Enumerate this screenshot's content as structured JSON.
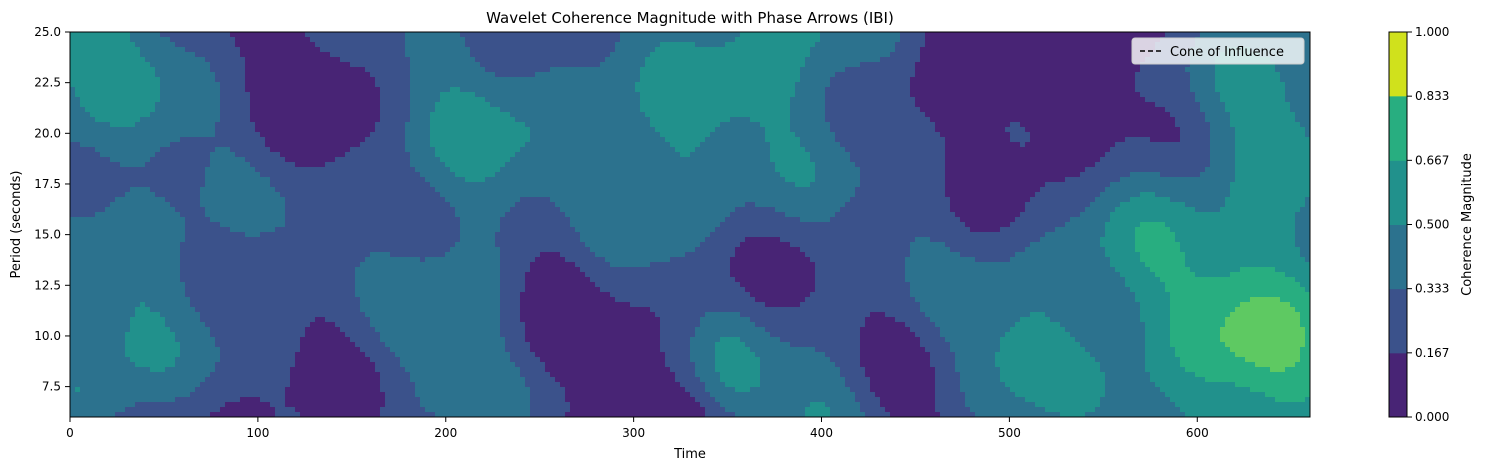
{
  "chart_data": {
    "type": "heatmap",
    "title": "Wavelet Coherence Magnitude with Phase Arrows (IBI)",
    "xlabel": "Time",
    "ylabel": "Period (seconds)",
    "xlim": [
      0,
      660
    ],
    "ylim": [
      6,
      25
    ],
    "xticks": [
      0,
      100,
      200,
      300,
      400,
      500,
      600
    ],
    "yticks": [
      7.5,
      10.0,
      12.5,
      15.0,
      17.5,
      20.0,
      22.5,
      25.0
    ],
    "ytick_labels": [
      "7.5",
      "10.0",
      "12.5",
      "15.0",
      "17.5",
      "20.0",
      "22.5",
      "25.0"
    ],
    "legend": {
      "label": "Cone of Influence",
      "placement": "top-right",
      "line_style": "dashed",
      "color": "#000000"
    },
    "colorbar": {
      "label": "Coherence Magnitude",
      "levels": [
        0.0,
        0.167,
        0.333,
        0.5,
        0.667,
        0.833,
        1.0
      ],
      "tick_labels": [
        "0.000",
        "0.167",
        "0.333",
        "0.500",
        "0.667",
        "0.833",
        "1.000"
      ],
      "colors": [
        "#482475",
        "#3b528b",
        "#2c728e",
        "#21918c",
        "#28ae80",
        "#5ec962",
        "#d0e11c"
      ]
    },
    "grid": false,
    "blobs": [
      {
        "x": 8,
        "y": 24.5,
        "r": 65,
        "v": 0.46
      },
      {
        "x": 12,
        "y": 8.5,
        "r": 45,
        "v": 0.4
      },
      {
        "x": 70,
        "y": 14,
        "r": 55,
        "v": 0.22
      },
      {
        "x": 130,
        "y": 14,
        "r": 20,
        "v": 0.12
      },
      {
        "x": 215,
        "y": 20,
        "r": 70,
        "v": 0.4
      },
      {
        "x": 200,
        "y": 8.5,
        "r": 40,
        "v": 0.3
      },
      {
        "x": 305,
        "y": 17.5,
        "r": 40,
        "v": 0.32
      },
      {
        "x": 380,
        "y": 24.5,
        "r": 75,
        "v": 0.5
      },
      {
        "x": 350,
        "y": 8,
        "r": 25,
        "v": 0.3
      },
      {
        "x": 395,
        "y": 6.5,
        "r": 30,
        "v": 0.4
      },
      {
        "x": 455,
        "y": 17,
        "r": 35,
        "v": 0.22
      },
      {
        "x": 505,
        "y": 10,
        "r": 45,
        "v": 0.42
      },
      {
        "x": 610,
        "y": 8.5,
        "r": 70,
        "v": 0.45
      },
      {
        "x": 650,
        "y": 11,
        "r": 55,
        "v": 0.38
      },
      {
        "x": 640,
        "y": 22,
        "r": 45,
        "v": 0.4
      },
      {
        "x": 568,
        "y": 15,
        "r": 35,
        "v": 0.22
      },
      {
        "x": 265,
        "y": 14,
        "r": 30,
        "v": -0.2
      },
      {
        "x": 470,
        "y": 22,
        "r": 60,
        "v": -0.2
      },
      {
        "x": 140,
        "y": 22,
        "r": 40,
        "v": -0.15
      }
    ]
  }
}
